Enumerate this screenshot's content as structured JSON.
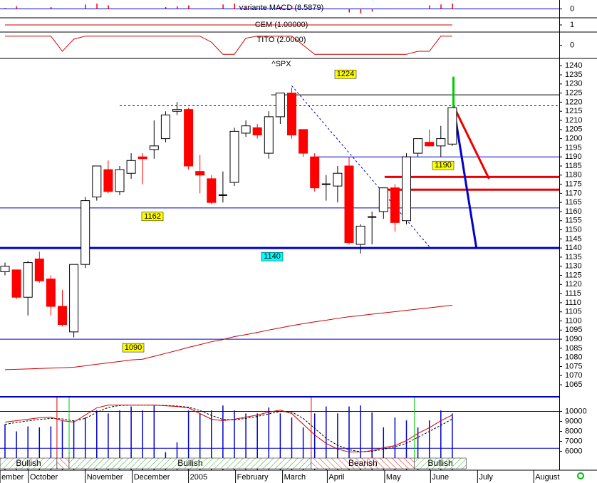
{
  "chart_data": [
    {
      "type": "bar",
      "title": "variante MACD (8.5879)",
      "color": "#ff0000",
      "zero_color": "#0000cc",
      "values": [
        0.1,
        0.3,
        0,
        0,
        0.2,
        0,
        0,
        0.5,
        0.6,
        0.4,
        0,
        0,
        0,
        0,
        0.2,
        0.3,
        0.4,
        0,
        0,
        0.5,
        0.6,
        0.3,
        0,
        0,
        0.2,
        0.3,
        0,
        0,
        0,
        0,
        -0.4,
        -0.5,
        -0.3,
        0,
        0,
        0,
        0,
        0.4,
        0.5,
        0.6
      ],
      "ylim": [
        -1,
        1
      ],
      "yticks": [
        0
      ]
    },
    {
      "type": "line",
      "title": "CEM (1.00000)",
      "color": "#cc0000",
      "values": [
        1,
        1,
        1,
        1,
        1,
        1,
        1,
        1,
        1,
        1,
        1,
        1,
        1,
        1,
        1,
        1,
        1,
        1,
        1,
        1,
        1,
        1,
        1,
        1,
        1,
        1,
        1,
        1,
        1,
        1,
        1,
        1,
        1,
        1,
        1,
        1,
        1,
        1,
        1,
        1
      ],
      "ylim": [
        0,
        2
      ],
      "yticks": [
        1
      ]
    },
    {
      "type": "line",
      "title": "TITO (2.0000)",
      "color": "#cc0000",
      "values": [
        0.9,
        0.9,
        0.9,
        0.9,
        0.9,
        -0.6,
        0.6,
        0.9,
        0.9,
        0.9,
        0.9,
        0.9,
        0.9,
        0.9,
        0.9,
        0.9,
        0.9,
        0.9,
        0.3,
        -0.9,
        -0.9,
        0.7,
        0.9,
        0.9,
        0.9,
        0.9,
        0,
        -0.9,
        -0.9,
        -0.9,
        -0.9,
        -0.9,
        -0.9,
        -0.9,
        -0.9,
        -0.9,
        -0.6,
        -0.6,
        0.9,
        0.9
      ],
      "ylim": [
        -1.3,
        1.3
      ],
      "yticks": [
        0
      ]
    },
    {
      "type": "candlestick",
      "title": "^SPX",
      "up_color": "#ffffff",
      "down_color": "#ff0000",
      "open": [
        1127,
        1128,
        1113,
        1134,
        1123,
        1108,
        1094,
        1131,
        1168,
        1183,
        1171,
        1181,
        1190,
        1194,
        1200,
        1215,
        1216,
        1182,
        1178,
        1169,
        1176,
        1203,
        1206,
        1192,
        1212,
        1225,
        1205,
        1190,
        1175,
        1174,
        1185,
        1142,
        1157,
        1160,
        1173,
        1155,
        1192,
        1198,
        1196,
        1197
      ],
      "high": [
        1132,
        1128,
        1133,
        1138,
        1125,
        1117,
        1131,
        1168,
        1185,
        1188,
        1185,
        1192,
        1192,
        1210,
        1215,
        1220,
        1217,
        1191,
        1180,
        1182,
        1206,
        1210,
        1208,
        1215,
        1225,
        1228,
        1205,
        1192,
        1180,
        1185,
        1190,
        1153,
        1160,
        1173,
        1175,
        1192,
        1200,
        1205,
        1207,
        1217
      ],
      "low": [
        1125,
        1112,
        1103,
        1121,
        1103,
        1097,
        1091,
        1129,
        1166,
        1170,
        1169,
        1178,
        1175,
        1189,
        1198,
        1213,
        1183,
        1170,
        1164,
        1165,
        1174,
        1201,
        1200,
        1189,
        1208,
        1200,
        1190,
        1171,
        1166,
        1165,
        1142,
        1137,
        1142,
        1156,
        1149,
        1153,
        1190,
        1196,
        1190,
        1196
      ],
      "close": [
        1130,
        1113,
        1132,
        1122,
        1108,
        1098,
        1131,
        1166,
        1185,
        1171,
        1183,
        1188,
        1189,
        1196,
        1213,
        1216,
        1185,
        1180,
        1165,
        1169,
        1204,
        1207,
        1202,
        1212,
        1225,
        1202,
        1192,
        1173,
        1175,
        1181,
        1143,
        1152,
        1157,
        1173,
        1154,
        1190,
        1200,
        1196,
        1200,
        1217
      ],
      "ma": {
        "color": "#cc0000",
        "values": [
          1073.3,
          1073.5,
          1073.7,
          1073.9,
          1074.1,
          1074.3,
          1074.6,
          1075.4,
          1076.2,
          1077,
          1077.8,
          1078.6,
          1079,
          1080.6,
          1082.2,
          1083.8,
          1085.5,
          1087,
          1088.6,
          1089.8,
          1091.4,
          1092.5,
          1093.7,
          1095,
          1096.2,
          1097.4,
          1098.5,
          1099.5,
          1100.4,
          1101.4,
          1102.3,
          1103,
          1103.7,
          1104.4,
          1105.1,
          1105.8,
          1106.5,
          1107.2,
          1107.9,
          1108.6
        ]
      },
      "levels": [
        {
          "value": 1224,
          "from": 23.2,
          "color": "#000000",
          "width": 1,
          "labeled": true,
          "box": "#ffff00"
        },
        {
          "value": 1218,
          "from": 10,
          "color": "#0000cc",
          "width": 1,
          "dash": true
        },
        {
          "value": 1190,
          "from": 27.2,
          "color": "#0000cc",
          "width": 1,
          "labeled": true,
          "box": "#ffff00"
        },
        {
          "value": 1179,
          "from": 33.1,
          "color": "#ee0000",
          "width": 3
        },
        {
          "value": 1172,
          "from": 33.1,
          "color": "#ee0000",
          "width": 3
        },
        {
          "value": 1162,
          "from": -0.5,
          "color": "#0000cc",
          "width": 1,
          "labeled": true,
          "box": "#ffff00"
        },
        {
          "value": 1140,
          "from": -0.5,
          "color": "#0000cc",
          "width": 3,
          "labeled": true,
          "box": "#00ffff"
        },
        {
          "value": 1090,
          "from": -0.5,
          "color": "#0000cc",
          "width": 1,
          "labeled": true,
          "box": "#ffff00"
        }
      ],
      "trendlines": [
        {
          "x": [
            25,
            37.1
          ],
          "y": [
            1229,
            1140
          ],
          "color": "#0000cc",
          "width": 1,
          "dash": true
        },
        {
          "x": [
            39.1,
            42.2
          ],
          "y": [
            1218,
            1178
          ],
          "color": "#ee0000",
          "width": 3
        },
        {
          "x": [
            39.1,
            41.1
          ],
          "y": [
            1218,
            1140
          ],
          "color": "#0000cc",
          "width": 3
        },
        {
          "x": [
            39.1,
            39.1
          ],
          "y": [
            1217,
            1234
          ],
          "color": "#00cc00",
          "width": 3
        }
      ],
      "ylim": [
        1058,
        1244
      ],
      "yticks": [
        1065,
        1070,
        1075,
        1080,
        1085,
        1090,
        1095,
        1100,
        1105,
        1110,
        1115,
        1120,
        1125,
        1130,
        1135,
        1140,
        1145,
        1150,
        1155,
        1160,
        1165,
        1170,
        1175,
        1180,
        1185,
        1190,
        1195,
        1200,
        1205,
        1210,
        1215,
        1220,
        1225,
        1230,
        1235,
        1240
      ],
      "x_labels": {
        "labels": [
          "ember",
          "October",
          "November",
          "December",
          "2005",
          "February",
          "March",
          "April",
          "May",
          "June",
          "July",
          "August"
        ],
        "at": [
          -0.43,
          2.05,
          7,
          11.1,
          16,
          20.1,
          24.2,
          28.1,
          33.1,
          37.1,
          41.2,
          46.1
        ]
      }
    },
    {
      "type": "volume",
      "color": "#0000cc",
      "values": [
        8700,
        8000,
        8500,
        8400,
        8500,
        9100,
        9100,
        9400,
        10100,
        9800,
        10100,
        10500,
        10100,
        10600,
        5900,
        6900,
        10100,
        9800,
        10100,
        10600,
        10100,
        9800,
        9800,
        10400,
        9800,
        9400,
        8400,
        9800,
        10500,
        9800,
        10500,
        10600,
        9900,
        8400,
        9400,
        9100,
        8400,
        9100,
        10100,
        9800
      ],
      "k": {
        "color": "#cc0000",
        "values": [
          8930,
          9070,
          9220,
          9360,
          9430,
          9070,
          8930,
          9640,
          10360,
          10640,
          10640,
          10640,
          10640,
          10640,
          10570,
          10500,
          10360,
          9790,
          9220,
          9070,
          9220,
          9430,
          9640,
          9930,
          10140,
          9790,
          8720,
          7640,
          6790,
          6220,
          5930,
          5930,
          6070,
          6360,
          6570,
          7070,
          7790,
          8360,
          9070,
          9640
        ]
      },
      "d": {
        "color": "#000000",
        "values": [
          8700,
          8900,
          9050,
          9200,
          9300,
          9250,
          9050,
          9300,
          9900,
          10400,
          10600,
          10640,
          10640,
          10640,
          10600,
          10540,
          10430,
          10100,
          9600,
          9200,
          9150,
          9300,
          9500,
          9750,
          10000,
          9950,
          9300,
          8300,
          7300,
          6600,
          6150,
          5950,
          6000,
          6200,
          6450,
          6800,
          7400,
          8000,
          8600,
          9250
        ]
      },
      "levels": [
        10000,
        6300
      ],
      "signals": [
        {
          "signal": "bullish",
          "start": -0.43,
          "end": 4.53,
          "label": "Bullish"
        },
        {
          "signal": "bearish",
          "start": 4.53,
          "end": 5.59
        },
        {
          "signal": "bullish",
          "start": 5.59,
          "end": 26.7,
          "label": "Bullish"
        },
        {
          "signal": "bearish",
          "start": 26.7,
          "end": 35.7,
          "label": "Bearish"
        },
        {
          "signal": "bullish",
          "start": 35.7,
          "end": 40.2,
          "label": "Bullish"
        }
      ],
      "ylim": [
        4100,
        11400
      ],
      "yticks": [
        10000,
        9000,
        8000,
        7000,
        6000
      ]
    }
  ]
}
